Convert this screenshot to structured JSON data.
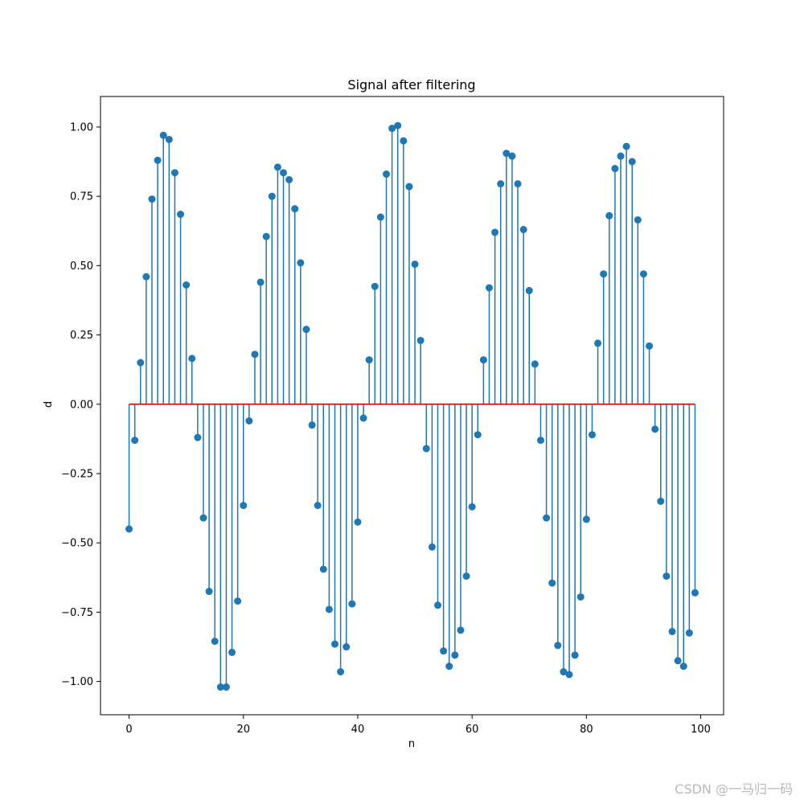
{
  "chart_data": {
    "type": "stem",
    "title": "Signal after filtering",
    "xlabel": "n",
    "ylabel": "d",
    "xlim": [
      -5,
      104
    ],
    "ylim": [
      -1.12,
      1.11
    ],
    "xticks": [
      0,
      20,
      40,
      60,
      80,
      100
    ],
    "yticks": [
      -1.0,
      -0.75,
      -0.5,
      -0.25,
      0.0,
      0.25,
      0.5,
      0.75,
      1.0
    ],
    "ytick_labels": [
      "−1.00",
      "−0.75",
      "−0.50",
      "−0.25",
      "0.00",
      "0.25",
      "0.50",
      "0.75",
      "1.00"
    ],
    "xtick_labels": [
      "0",
      "20",
      "40",
      "60",
      "80",
      "100"
    ],
    "baseline": 0,
    "grid": false,
    "colors": {
      "stem": "#1f77b4",
      "baseline": "#d62728",
      "axes": "#000000"
    },
    "x_start": 0,
    "values": [
      -0.45,
      -0.13,
      0.15,
      0.46,
      0.74,
      0.88,
      0.97,
      0.955,
      0.835,
      0.685,
      0.43,
      0.165,
      -0.12,
      -0.41,
      -0.675,
      -0.855,
      -1.02,
      -1.02,
      -0.895,
      -0.71,
      -0.365,
      -0.06,
      0.18,
      0.44,
      0.605,
      0.75,
      0.855,
      0.835,
      0.81,
      0.705,
      0.51,
      0.27,
      -0.075,
      -0.365,
      -0.595,
      -0.74,
      -0.865,
      -0.965,
      -0.875,
      -0.72,
      -0.425,
      -0.05,
      0.16,
      0.425,
      0.675,
      0.83,
      0.995,
      1.005,
      0.95,
      0.785,
      0.505,
      0.23,
      -0.16,
      -0.515,
      -0.725,
      -0.89,
      -0.945,
      -0.905,
      -0.815,
      -0.62,
      -0.37,
      -0.11,
      0.16,
      0.42,
      0.62,
      0.795,
      0.905,
      0.895,
      0.795,
      0.63,
      0.41,
      0.145,
      -0.13,
      -0.41,
      -0.645,
      -0.87,
      -0.965,
      -0.975,
      -0.905,
      -0.695,
      -0.415,
      -0.11,
      0.22,
      0.47,
      0.68,
      0.85,
      0.895,
      0.93,
      0.875,
      0.665,
      0.47,
      0.21,
      -0.09,
      -0.35,
      -0.62,
      -0.82,
      -0.925,
      -0.945,
      -0.825,
      -0.68
    ]
  },
  "watermark": "CSDN @一马归一码"
}
